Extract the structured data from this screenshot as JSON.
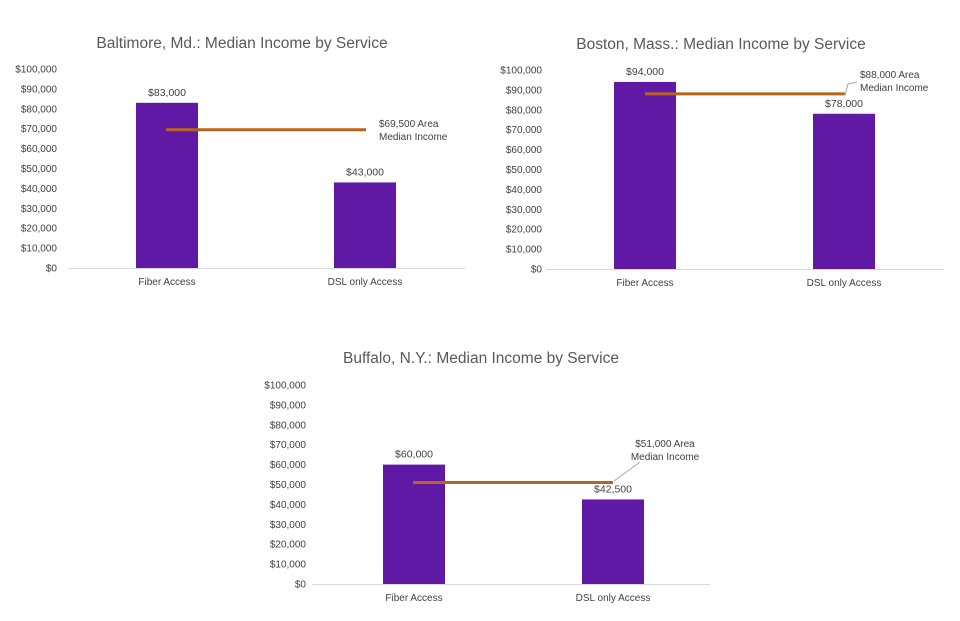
{
  "colors": {
    "bar": "#5f19a5",
    "median_line": "#b8651b",
    "axis": "#d9d9d9",
    "text": "#404040"
  },
  "chart_data": [
    {
      "type": "bar",
      "title": "Baltimore, Md.: Median Income by Service",
      "categories": [
        "Fiber Access",
        "DSL only Access"
      ],
      "values": [
        83000,
        43000
      ],
      "data_labels": [
        "$83,000",
        "$43,000"
      ],
      "ylim": [
        0,
        100000
      ],
      "yticks": [
        "$0",
        "$10,000",
        "$20,000",
        "$30,000",
        "$40,000",
        "$50,000",
        "$60,000",
        "$70,000",
        "$80,000",
        "$90,000",
        "$100,000"
      ],
      "reference_line": {
        "value": 69500,
        "label_lines": [
          "$69,500 Area",
          "Median Income"
        ]
      },
      "grid": false
    },
    {
      "type": "bar",
      "title": "Boston, Mass.: Median Income by Service",
      "categories": [
        "Fiber Access",
        "DSL only Access"
      ],
      "values": [
        94000,
        78000
      ],
      "data_labels": [
        "$94,000",
        "$78,000"
      ],
      "ylim": [
        0,
        100000
      ],
      "yticks": [
        "$0",
        "$10,000",
        "$20,000",
        "$30,000",
        "$40,000",
        "$50,000",
        "$60,000",
        "$70,000",
        "$80,000",
        "$90,000",
        "$100,000"
      ],
      "reference_line": {
        "value": 88000,
        "label_lines": [
          "$88,000 Area",
          "Median Income"
        ]
      },
      "grid": false
    },
    {
      "type": "bar",
      "title": "Buffalo, N.Y.: Median Income by Service",
      "categories": [
        "Fiber Access",
        "DSL only Access"
      ],
      "values": [
        60000,
        42500
      ],
      "data_labels": [
        "$60,000",
        "$42,500"
      ],
      "ylim": [
        0,
        100000
      ],
      "yticks": [
        "$0",
        "$10,000",
        "$20,000",
        "$30,000",
        "$40,000",
        "$50,000",
        "$60,000",
        "$70,000",
        "$80,000",
        "$90,000",
        "$100,000"
      ],
      "reference_line": {
        "value": 51000,
        "label_lines": [
          "$51,000 Area",
          "Median Income"
        ]
      },
      "grid": false
    }
  ]
}
